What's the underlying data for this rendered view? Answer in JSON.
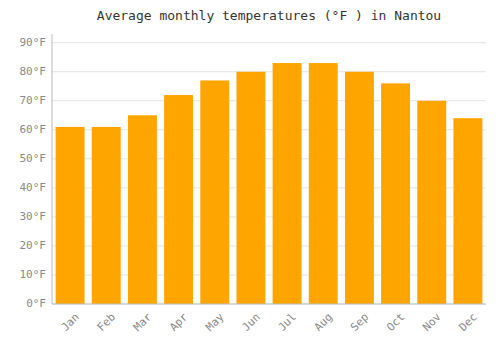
{
  "chart_data": {
    "type": "bar",
    "title": "Average monthly temperatures (°F ) in Nantou",
    "categories": [
      "Jan",
      "Feb",
      "Mar",
      "Apr",
      "May",
      "Jun",
      "Jul",
      "Aug",
      "Sep",
      "Oct",
      "Nov",
      "Dec"
    ],
    "values": [
      61,
      61,
      65,
      72,
      77,
      80,
      83,
      83,
      80,
      76,
      70,
      64
    ],
    "color": "#FFA500",
    "ylim": [
      0,
      93
    ],
    "yticks": [
      {
        "value": 0,
        "label": "0°F"
      },
      {
        "value": 10,
        "label": "10°F"
      },
      {
        "value": 20,
        "label": "20°F"
      },
      {
        "value": 30,
        "label": "30°F"
      },
      {
        "value": 40,
        "label": "40°F"
      },
      {
        "value": 50,
        "label": "50°F"
      },
      {
        "value": 60,
        "label": "60°F"
      },
      {
        "value": 70,
        "label": "70°F"
      },
      {
        "value": 80,
        "label": "80°F"
      },
      {
        "value": 90,
        "label": "90°F"
      }
    ],
    "grid": true
  }
}
